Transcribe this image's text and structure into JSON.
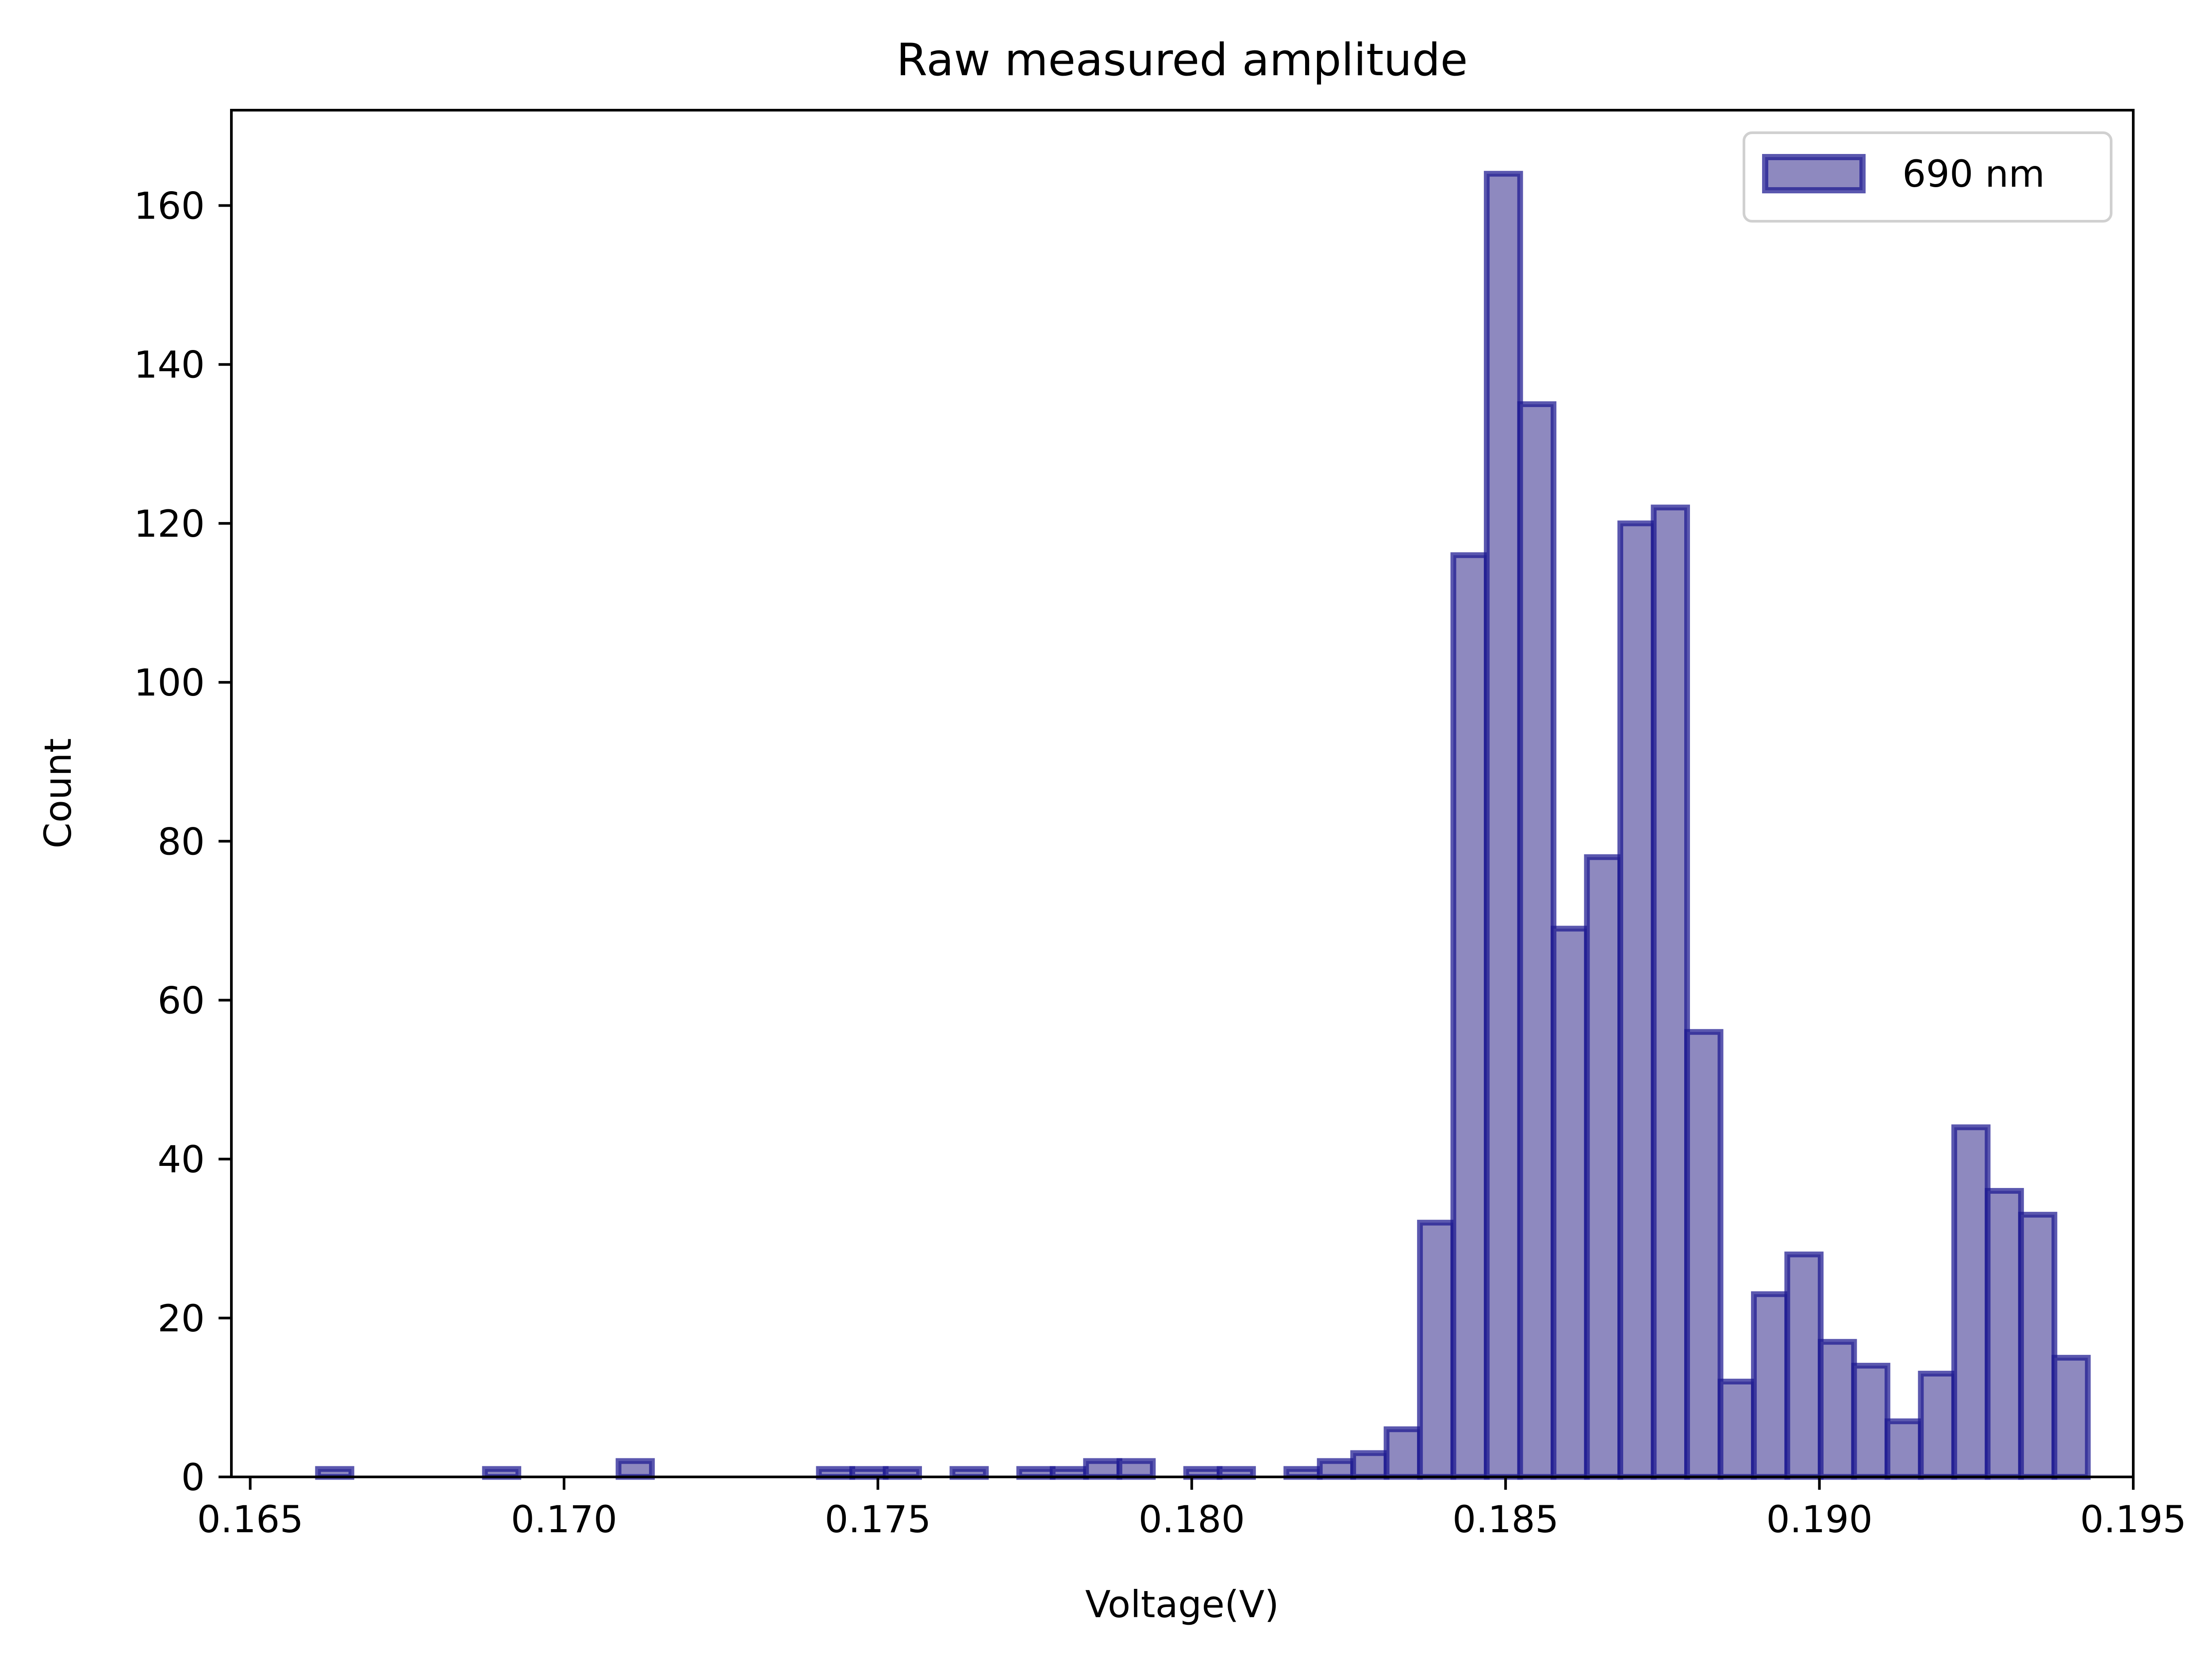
{
  "chart_data": {
    "type": "bar",
    "title": "Raw measured amplitude",
    "xlabel": "Voltage(V)",
    "ylabel": "Count",
    "xlim": [
      0.1647,
      0.195
    ],
    "ylim": [
      0,
      172
    ],
    "xticks": [
      0.165,
      0.17,
      0.175,
      0.18,
      0.185,
      0.19,
      0.195
    ],
    "xtick_labels": [
      "0.165",
      "0.170",
      "0.175",
      "0.180",
      "0.185",
      "0.190",
      "0.195"
    ],
    "yticks": [
      0,
      20,
      40,
      60,
      80,
      100,
      120,
      140,
      160
    ],
    "ytick_labels": [
      "0",
      "20",
      "40",
      "60",
      "80",
      "100",
      "120",
      "140",
      "160"
    ],
    "grid": false,
    "legend_position": "top-right",
    "bin_start": 0.16608,
    "bin_width": 0.000532,
    "counts": [
      1,
      0,
      0,
      0,
      0,
      1,
      0,
      0,
      0,
      2,
      0,
      0,
      0,
      0,
      0,
      1,
      1,
      1,
      0,
      1,
      0,
      1,
      1,
      2,
      2,
      0,
      1,
      1,
      0,
      1,
      2,
      3,
      6,
      32,
      116,
      164,
      135,
      69,
      78,
      120,
      122,
      56,
      12,
      23,
      28,
      17,
      14,
      7,
      13,
      44,
      36,
      33,
      15
    ],
    "series": [
      {
        "name": "690 nm",
        "fill_color": "#8e89bf",
        "edge_color": "#1c1890"
      }
    ]
  }
}
